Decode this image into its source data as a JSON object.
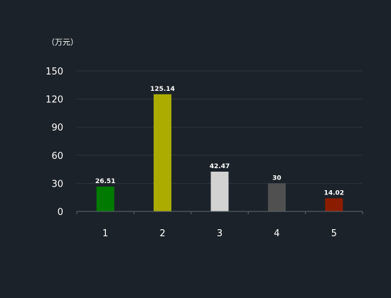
{
  "chart_data": {
    "type": "bar",
    "unit_label": "（万元）",
    "categories": [
      "1",
      "2",
      "3",
      "4",
      "5"
    ],
    "values": [
      26.51,
      125.14,
      42.47,
      30,
      14.02
    ],
    "value_labels": [
      "26.51",
      "125.14",
      "42.47",
      "30",
      "14.02"
    ],
    "colors": [
      "#007a00",
      "#acac00",
      "#d2d2d2",
      "#505050",
      "#8c1c00"
    ],
    "yticks": [
      "150",
      "120",
      "90",
      "60",
      "30",
      "0"
    ],
    "ylim": [
      0,
      150
    ],
    "grid": true,
    "legend": "none"
  }
}
